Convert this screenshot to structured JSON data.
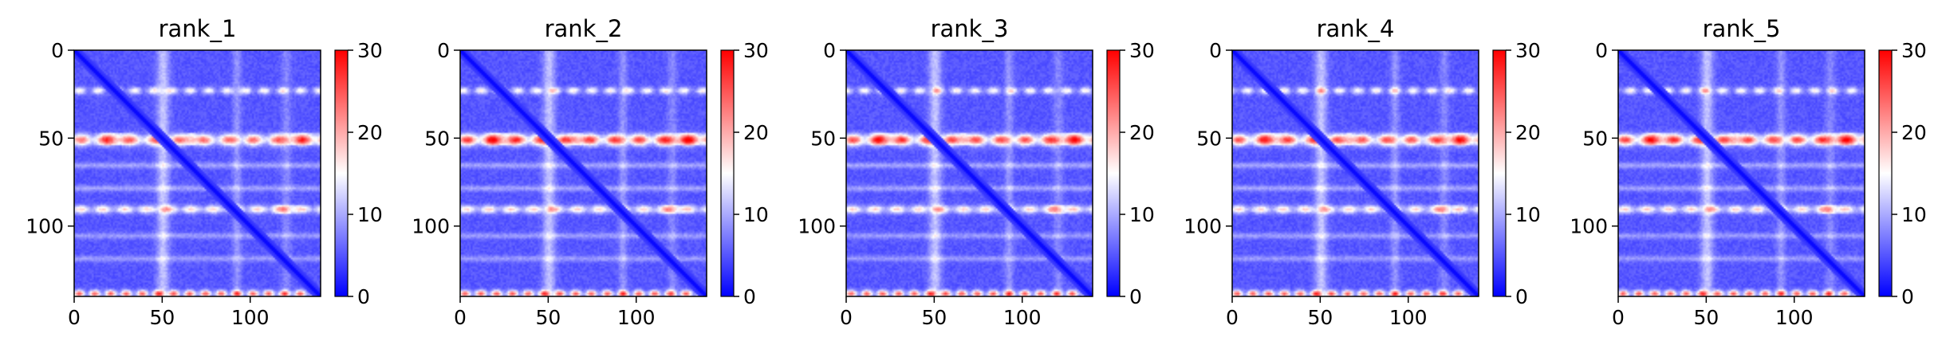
{
  "chart_data": {
    "type": "heatmap",
    "colormap": "bwr",
    "colormap_colors": {
      "low": "#0000ff",
      "mid": "#ffffff",
      "high": "#ff0000"
    },
    "color_range": [
      0,
      30
    ],
    "colorbar_ticks": [
      "0",
      "10",
      "20",
      "30"
    ],
    "matrix_size": 140,
    "xlim": [
      0,
      140
    ],
    "ylim": [
      140,
      0
    ],
    "x_ticks": [
      "0",
      "50",
      "100"
    ],
    "y_ticks": [
      "0",
      "50",
      "100"
    ],
    "panels": [
      {
        "title": "rank_1"
      },
      {
        "title": "rank_2"
      },
      {
        "title": "rank_3"
      },
      {
        "title": "rank_4"
      },
      {
        "title": "rank_5"
      }
    ]
  }
}
